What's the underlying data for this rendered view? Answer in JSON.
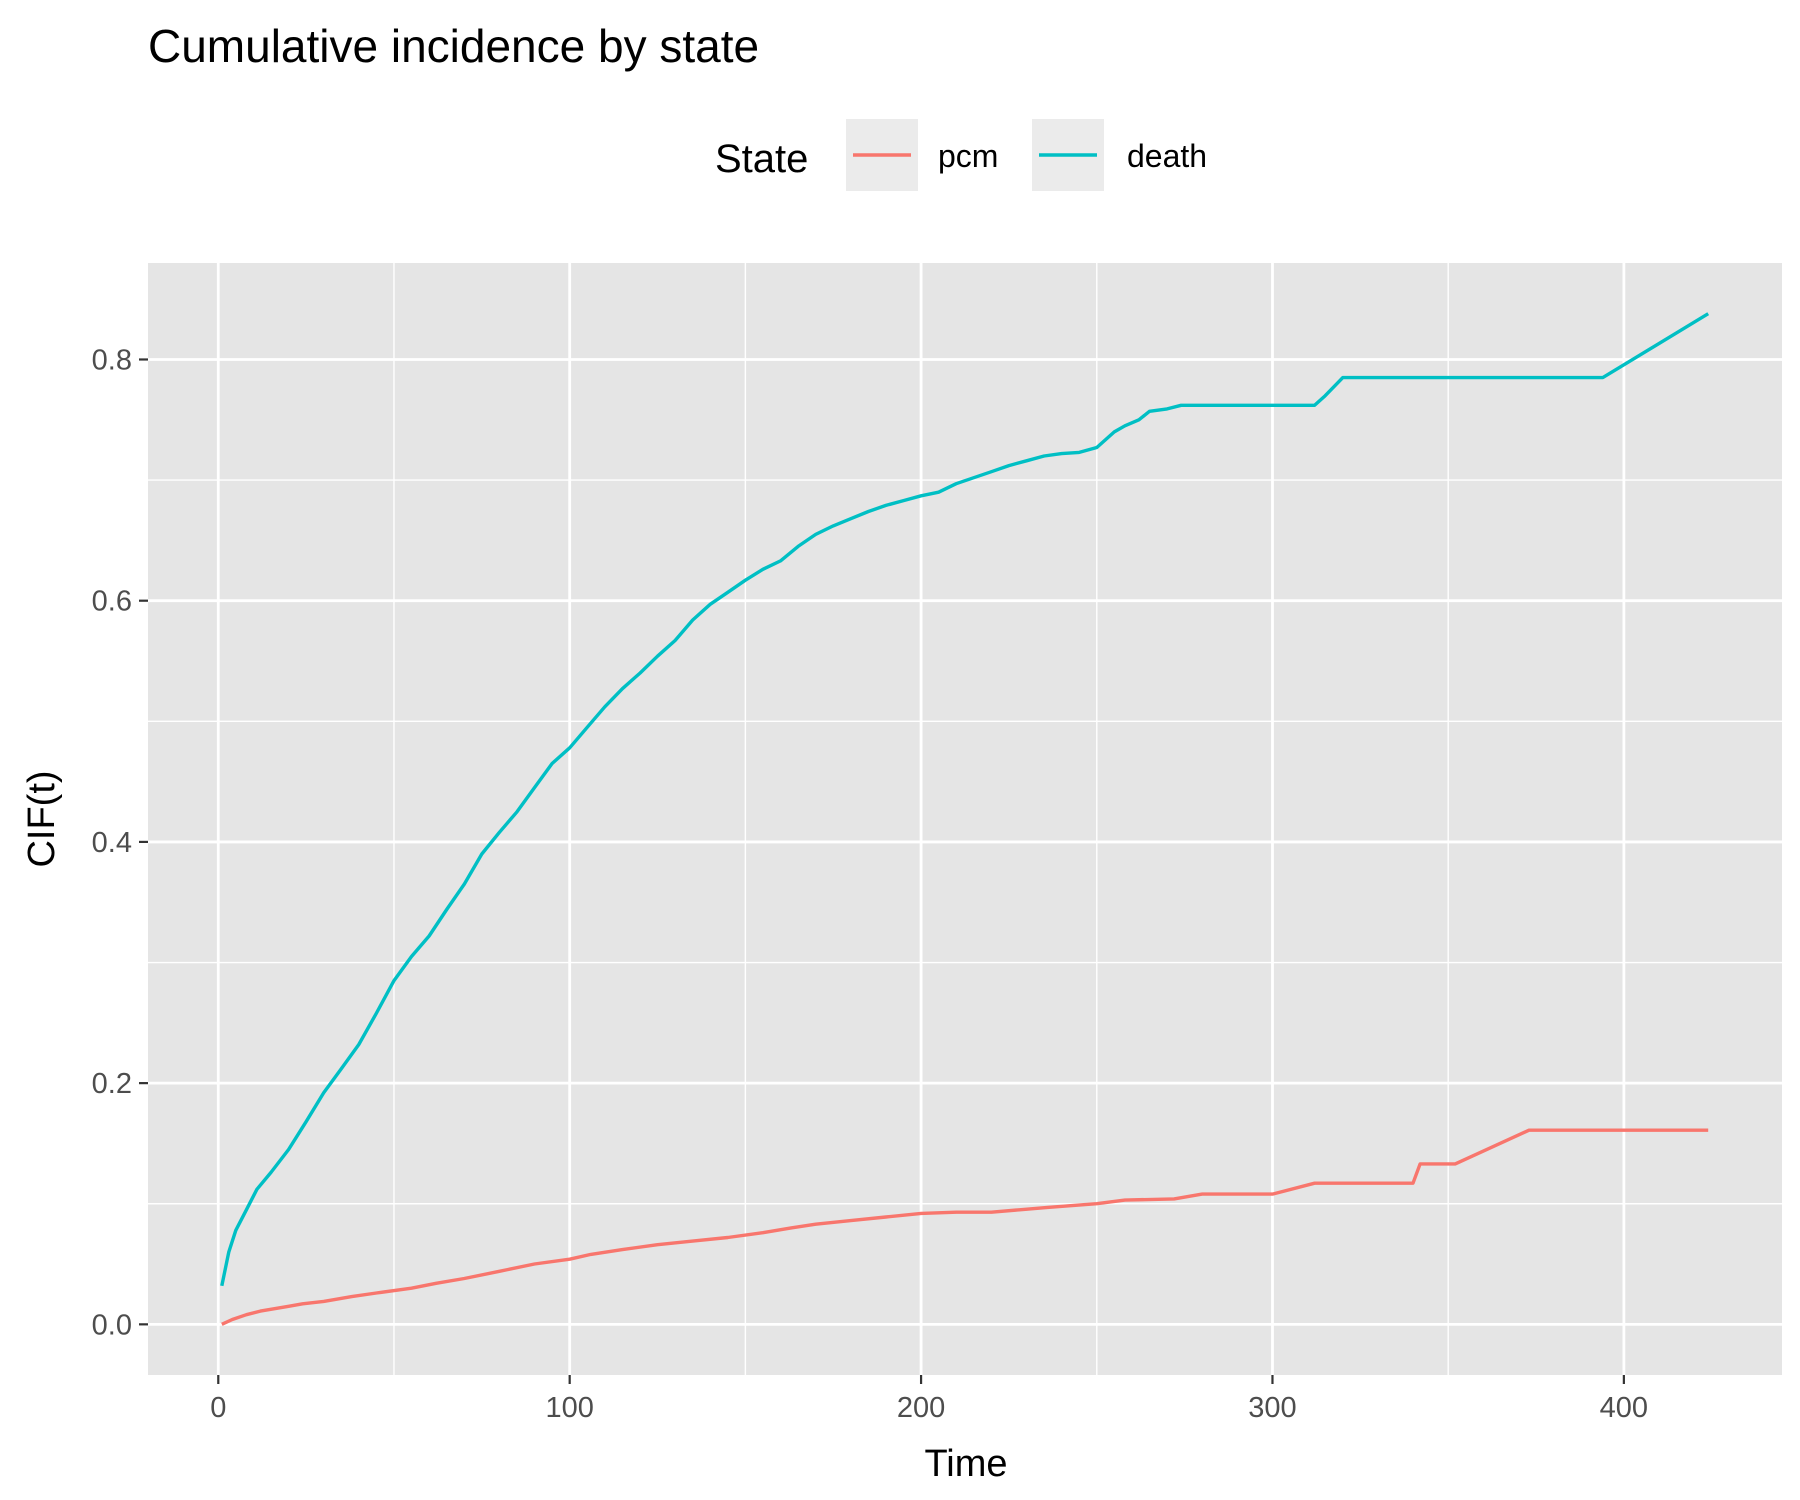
{
  "chart_data": {
    "type": "line",
    "title": "Cumulative incidence by state",
    "xlabel": "Time",
    "ylabel": "CIF(t)",
    "xlim": [
      -20,
      445
    ],
    "ylim": [
      -0.042,
      0.88
    ],
    "xticks": [
      0,
      100,
      200,
      300,
      400
    ],
    "xtick_labels": [
      "0",
      "100",
      "200",
      "300",
      "400"
    ],
    "yticks": [
      0.0,
      0.2,
      0.4,
      0.6,
      0.8
    ],
    "ytick_labels": [
      "0.0",
      "0.2",
      "0.4",
      "0.6",
      "0.8"
    ],
    "grid": true,
    "legend": {
      "title": "State",
      "position": "top",
      "entries": [
        "pcm",
        "death"
      ]
    },
    "series": [
      {
        "name": "pcm",
        "color": "#F8766D",
        "step": false,
        "x": [
          1,
          4,
          8,
          12,
          16,
          20,
          24,
          30,
          38,
          45,
          55,
          62,
          70,
          80,
          90,
          100,
          106,
          115,
          125,
          135,
          145,
          155,
          163,
          170,
          180,
          190,
          200,
          210,
          220,
          228,
          236,
          250,
          258,
          272,
          280,
          300,
          312,
          340,
          342,
          352,
          373,
          424
        ],
        "y": [
          0.0,
          0.004,
          0.008,
          0.011,
          0.013,
          0.015,
          0.017,
          0.019,
          0.023,
          0.026,
          0.03,
          0.034,
          0.038,
          0.044,
          0.05,
          0.054,
          0.058,
          0.062,
          0.066,
          0.069,
          0.072,
          0.076,
          0.08,
          0.083,
          0.086,
          0.089,
          0.092,
          0.093,
          0.093,
          0.095,
          0.097,
          0.1,
          0.103,
          0.104,
          0.108,
          0.108,
          0.117,
          0.117,
          0.133,
          0.133,
          0.161,
          0.161
        ]
      },
      {
        "name": "death",
        "color": "#00BFC4",
        "step": false,
        "x": [
          1,
          3,
          5,
          8,
          11,
          15,
          20,
          25,
          30,
          35,
          40,
          45,
          50,
          55,
          60,
          65,
          70,
          75,
          80,
          85,
          90,
          95,
          100,
          105,
          110,
          115,
          120,
          125,
          130,
          135,
          140,
          145,
          150,
          155,
          160,
          165,
          170,
          175,
          180,
          185,
          190,
          195,
          200,
          205,
          210,
          215,
          220,
          225,
          230,
          235,
          240,
          245,
          250,
          255,
          258,
          262,
          265,
          270,
          274,
          285,
          300,
          312,
          315,
          320,
          350,
          394,
          424
        ],
        "y": [
          0.032,
          0.06,
          0.078,
          0.095,
          0.112,
          0.126,
          0.145,
          0.168,
          0.192,
          0.212,
          0.232,
          0.258,
          0.285,
          0.305,
          0.322,
          0.344,
          0.365,
          0.39,
          0.408,
          0.425,
          0.445,
          0.465,
          0.478,
          0.495,
          0.512,
          0.527,
          0.54,
          0.554,
          0.567,
          0.584,
          0.597,
          0.607,
          0.617,
          0.626,
          0.633,
          0.645,
          0.655,
          0.662,
          0.668,
          0.674,
          0.679,
          0.683,
          0.687,
          0.69,
          0.697,
          0.702,
          0.707,
          0.712,
          0.716,
          0.72,
          0.722,
          0.723,
          0.727,
          0.74,
          0.745,
          0.75,
          0.757,
          0.759,
          0.762,
          0.762,
          0.762,
          0.762,
          0.77,
          0.785,
          0.785,
          0.785,
          0.838
        ]
      }
    ]
  }
}
